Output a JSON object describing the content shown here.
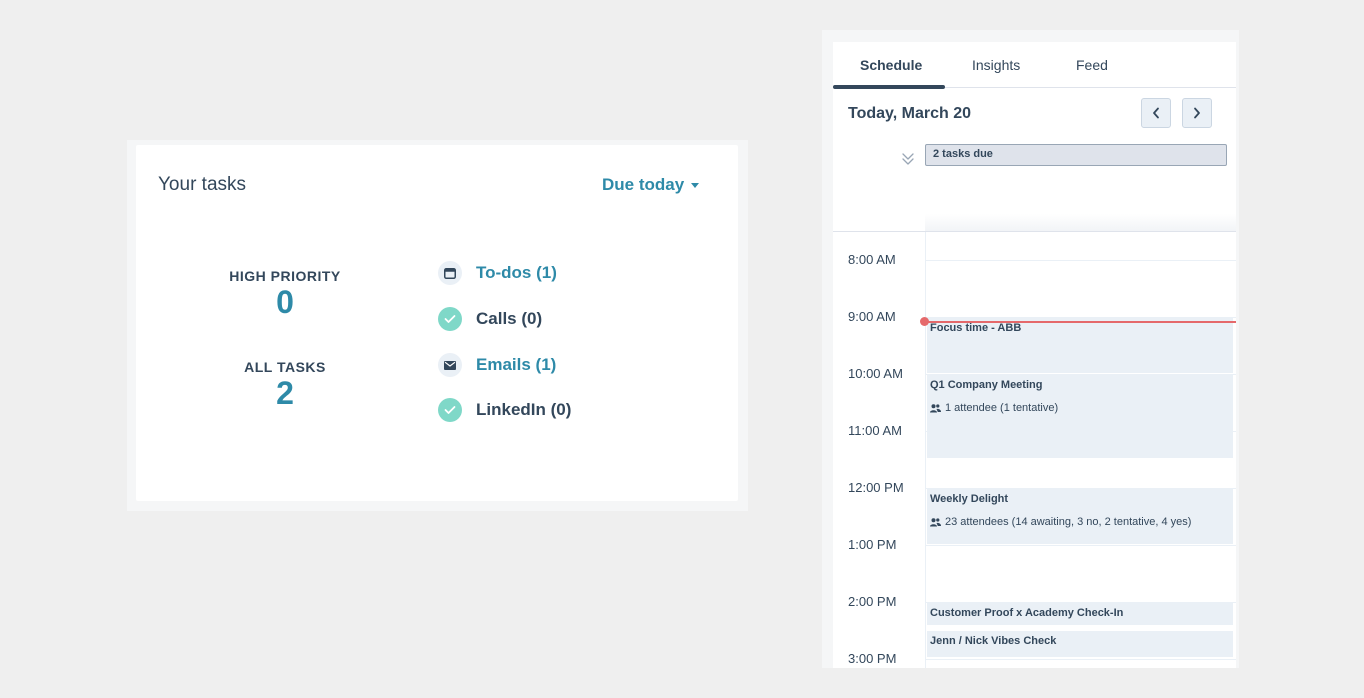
{
  "tasks": {
    "title": "Your tasks",
    "filter_label": "Due today",
    "high_priority_label": "HIGH PRIORITY",
    "high_priority_value": "0",
    "all_tasks_label": "ALL TASKS",
    "all_tasks_value": "2",
    "items": [
      {
        "label": "To-dos (1)",
        "icon": "calendar-window-icon",
        "state": "pending"
      },
      {
        "label": "Calls (0)",
        "icon": "check-icon",
        "state": "done"
      },
      {
        "label": "Emails (1)",
        "icon": "envelope-icon",
        "state": "pending"
      },
      {
        "label": "LinkedIn (0)",
        "icon": "check-icon",
        "state": "done"
      }
    ]
  },
  "calendar": {
    "tabs": [
      {
        "label": "Schedule",
        "active": true
      },
      {
        "label": "Insights",
        "active": false
      },
      {
        "label": "Feed",
        "active": false
      }
    ],
    "date_title": "Today, March 20",
    "tasks_due_label": "2 tasks due",
    "hours": [
      "8:00 AM",
      "9:00 AM",
      "10:00 AM",
      "11:00 AM",
      "12:00 PM",
      "1:00 PM",
      "2:00 PM",
      "3:00 PM"
    ],
    "events": [
      {
        "title": "Focus time - ABB",
        "meta": ""
      },
      {
        "title": "Q1 Company Meeting",
        "meta": "1 attendee (1 tentative)"
      },
      {
        "title": "Weekly Delight",
        "meta": "23 attendees (14 awaiting, 3 no, 2 tentative, 4 yes)"
      },
      {
        "title": "Customer Proof x Academy Check-In",
        "meta": ""
      },
      {
        "title": "Jenn / Nick Vibes Check",
        "meta": ""
      }
    ]
  },
  "colors": {
    "accent": "#2e8aa8",
    "text": "#33475b",
    "done": "#7fd8c8",
    "now_line": "#e5696b",
    "event_bg": "#eaf0f6"
  }
}
